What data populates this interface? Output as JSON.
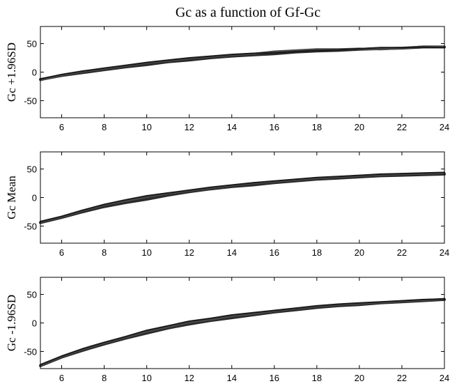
{
  "chart_title": "Gc as a function of Gf-Gc",
  "chart_data": [
    {
      "type": "line",
      "ylabel": "Gc +1.96SD",
      "xlim": [
        5,
        24
      ],
      "ylim": [
        -80,
        80
      ],
      "xticks": [
        6,
        8,
        10,
        12,
        14,
        16,
        18,
        20,
        22,
        24
      ],
      "yticks": [
        50,
        0,
        -50
      ],
      "x": [
        5,
        6,
        7,
        8,
        9,
        10,
        11,
        12,
        13,
        14,
        15,
        16,
        17,
        18,
        19,
        20,
        21,
        22,
        23,
        24
      ],
      "series": [
        {
          "values": [
            -13,
            -6,
            -1,
            4,
            9,
            13,
            18,
            21,
            25,
            28,
            30,
            32,
            35,
            37,
            38,
            40,
            41,
            42,
            44,
            44
          ]
        },
        {
          "values": [
            -14,
            -5,
            1,
            6,
            11,
            16,
            20,
            24,
            27,
            30,
            32,
            36,
            38,
            40,
            40,
            41,
            40,
            42,
            45,
            45
          ]
        },
        {
          "values": [
            -12,
            -4,
            2,
            7,
            12,
            17,
            21,
            25,
            28,
            31,
            33,
            34,
            36,
            38,
            39,
            41,
            43,
            43,
            44,
            43
          ]
        }
      ]
    },
    {
      "type": "line",
      "ylabel": "Gc Mean",
      "xlim": [
        5,
        24
      ],
      "ylim": [
        -80,
        80
      ],
      "xticks": [
        6,
        8,
        10,
        12,
        14,
        16,
        18,
        20,
        22,
        24
      ],
      "yticks": [
        50,
        0,
        -50
      ],
      "x": [
        5,
        6,
        7,
        8,
        9,
        10,
        11,
        12,
        13,
        14,
        15,
        16,
        17,
        18,
        19,
        20,
        21,
        22,
        23,
        24
      ],
      "series": [
        {
          "values": [
            -44,
            -35,
            -25,
            -16,
            -9,
            -3,
            4,
            10,
            15,
            19,
            22,
            26,
            29,
            32,
            34,
            36,
            38,
            39,
            40,
            41
          ]
        },
        {
          "values": [
            -43,
            -34,
            -23,
            -13,
            -6,
            1,
            7,
            12,
            17,
            21,
            25,
            28,
            31,
            34,
            36,
            38,
            40,
            41,
            42,
            43
          ]
        },
        {
          "values": [
            -42,
            -33,
            -22,
            -12,
            -4,
            3,
            8,
            13,
            18,
            22,
            26,
            29,
            32,
            35,
            37,
            39,
            41,
            42,
            43,
            44
          ]
        }
      ]
    },
    {
      "type": "line",
      "ylabel": "Gc -1.96SD",
      "xlim": [
        5,
        24
      ],
      "ylim": [
        -80,
        80
      ],
      "xticks": [
        6,
        8,
        10,
        12,
        14,
        16,
        18,
        20,
        22,
        24
      ],
      "yticks": [
        50,
        0,
        -50
      ],
      "x": [
        5,
        6,
        7,
        8,
        9,
        10,
        11,
        12,
        13,
        14,
        15,
        16,
        17,
        18,
        19,
        20,
        21,
        22,
        23,
        24
      ],
      "series": [
        {
          "values": [
            -75,
            -60,
            -48,
            -37,
            -27,
            -18,
            -9,
            -2,
            4,
            9,
            14,
            19,
            23,
            27,
            30,
            32,
            35,
            37,
            39,
            41
          ]
        },
        {
          "values": [
            -74,
            -59,
            -46,
            -35,
            -25,
            -15,
            -7,
            1,
            6,
            12,
            16,
            21,
            25,
            29,
            32,
            34,
            36,
            38,
            40,
            42
          ]
        },
        {
          "values": [
            -73,
            -58,
            -45,
            -34,
            -24,
            -13,
            -5,
            3,
            8,
            14,
            18,
            22,
            26,
            30,
            33,
            35,
            37,
            39,
            41,
            42
          ]
        }
      ]
    }
  ]
}
